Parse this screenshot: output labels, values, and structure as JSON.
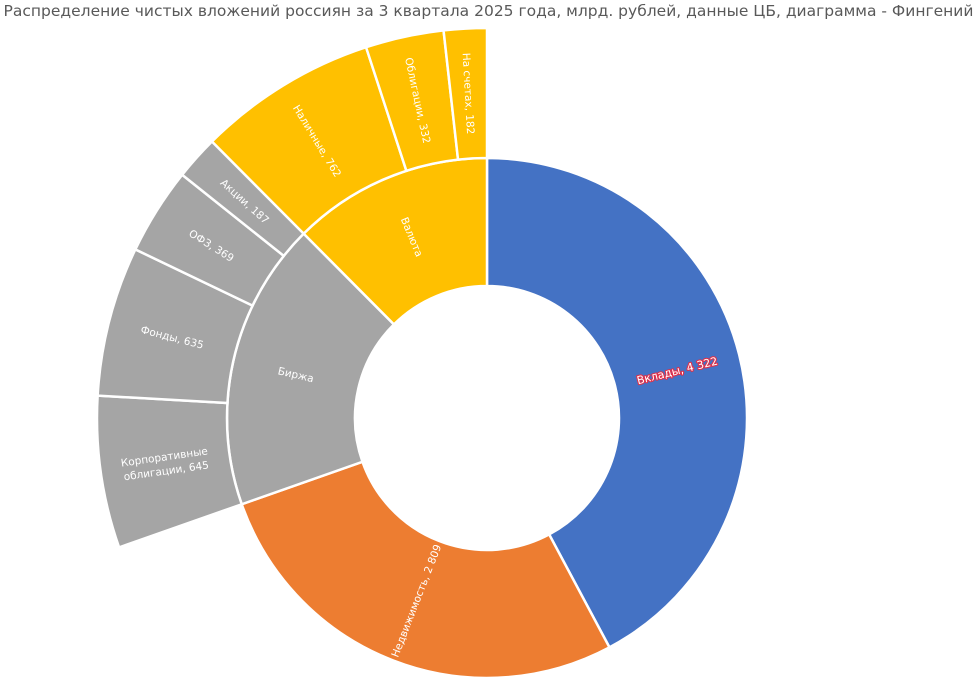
{
  "chart_data": {
    "type": "sunburst",
    "title": "Распределение чистых вложений россиян за 3 квартала 2025 года, млрд. рублей, данные ЦБ, диаграмма - Фингений",
    "colors": {
      "deposits": "#4472C4",
      "realty": "#ED7D31",
      "exchange": "#A5A5A5",
      "currency": "#FFC000"
    },
    "inner": [
      {
        "key": "deposits",
        "label": "Вклады, 4 322",
        "value": 4322,
        "color": "#4472C4"
      },
      {
        "key": "realty",
        "label": "Недвижимость, 2 809",
        "value": 2809,
        "color": "#ED7D31"
      },
      {
        "key": "exchange",
        "label": "Биржа",
        "value": 1836,
        "color": "#A5A5A5"
      },
      {
        "key": "currency",
        "label": "Валюта",
        "value": 1276,
        "color": "#FFC000"
      }
    ],
    "outer": [
      {
        "parent": "exchange",
        "label": "Корпоративные облигации, 645",
        "lines": [
          "Корпоративные",
          "облигации, 645"
        ],
        "value": 645
      },
      {
        "parent": "exchange",
        "label": "Фонды, 635",
        "lines": [
          "Фонды, 635"
        ],
        "value": 635
      },
      {
        "parent": "exchange",
        "label": "ОФЗ, 369",
        "lines": [
          "ОФЗ, 369"
        ],
        "value": 369
      },
      {
        "parent": "exchange",
        "label": "Акции, 187",
        "lines": [
          "Акции, 187"
        ],
        "value": 187
      },
      {
        "parent": "currency",
        "label": "Наличные, 762",
        "lines": [
          "Наличные, 762"
        ],
        "value": 762
      },
      {
        "parent": "currency",
        "label": "Облигации, 332",
        "lines": [
          "Облигации, 332"
        ],
        "value": 332
      },
      {
        "parent": "currency",
        "label": "На счетах, 182",
        "lines": [
          "На счетах, 182"
        ],
        "value": 182
      }
    ]
  }
}
